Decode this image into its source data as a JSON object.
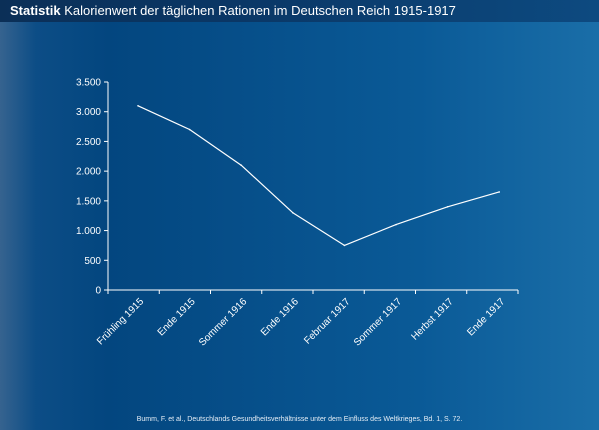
{
  "header": {
    "title_bold": "Statistik",
    "title_rest": "Kalorienwert der täglichen Rationen im Deutschen Reich 1915-1917"
  },
  "source_text": "Bumm, F. et al., Deutschlands Gesundheitsverhältnisse unter dem Einfluss des Weltkrieges, Bd. 1, S. 72.",
  "colors": {
    "line": "#ffffff",
    "axis": "#ffffff",
    "text": "#ffffff"
  },
  "chart_data": {
    "type": "line",
    "title": "Kalorienwert der täglichen Rationen im Deutschen Reich 1915-1917",
    "xlabel": "",
    "ylabel": "",
    "categories": [
      "Frühling 1915",
      "Ende 1915",
      "Sommer 1916",
      "Ende 1916",
      "Februar 1917",
      "Sommer 1917",
      "Herbst 1917",
      "Ende 1917"
    ],
    "values": [
      3100,
      2700,
      2100,
      1300,
      750,
      1100,
      1400,
      1650
    ],
    "ylim": [
      0,
      3500
    ],
    "yticks": [
      0,
      500,
      1000,
      1500,
      2000,
      2500,
      3000,
      3500
    ],
    "ytick_labels": [
      "0",
      "500",
      "1.000",
      "1.500",
      "2.000",
      "2.500",
      "3.000",
      "3.500"
    ],
    "grid": false,
    "legend": "none"
  }
}
